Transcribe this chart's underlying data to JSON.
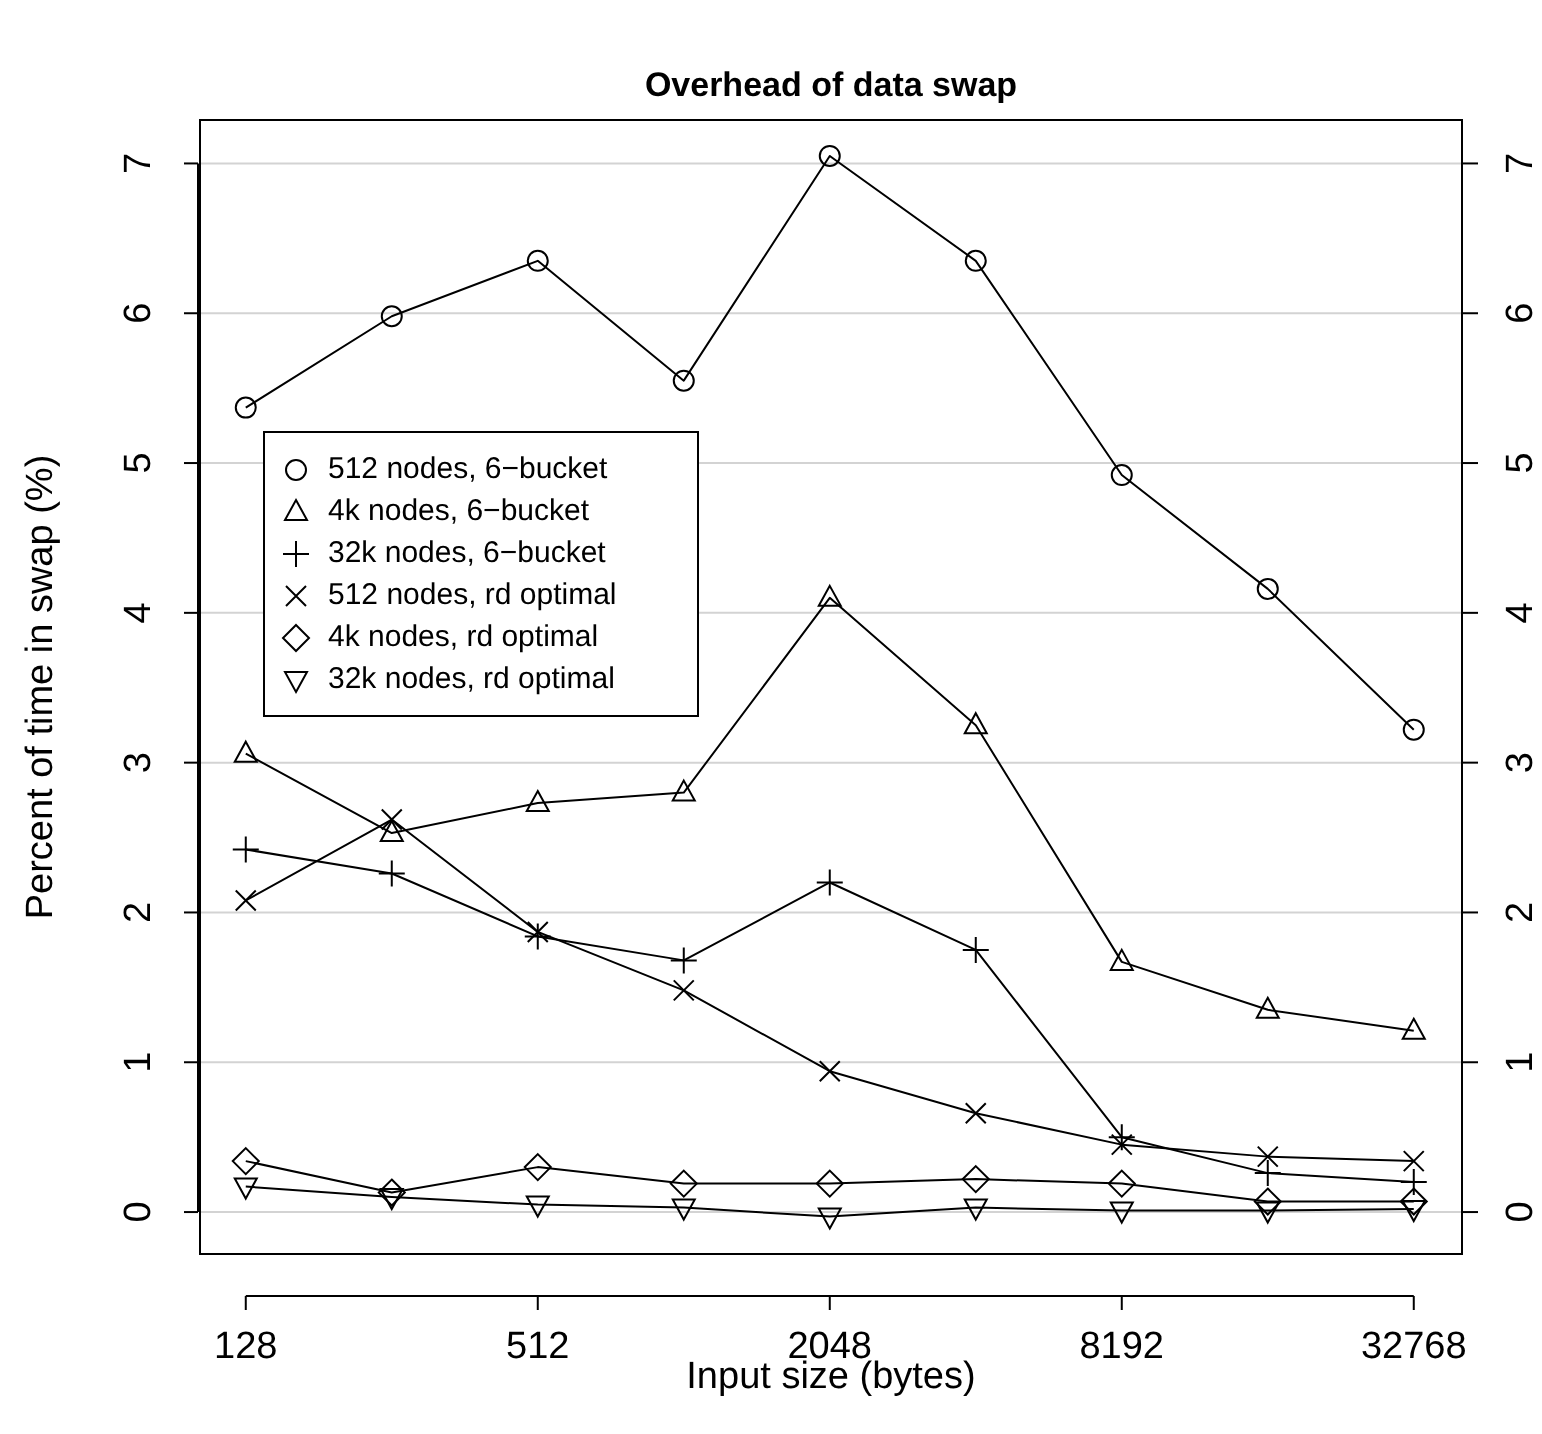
{
  "chart_data": {
    "type": "line",
    "title": "Overhead of data swap",
    "xlabel": "Input size (bytes)",
    "ylabel": "Percent of time in swap (%)",
    "x": [
      128,
      256,
      512,
      1024,
      2048,
      4096,
      8192,
      16384,
      32768
    ],
    "log": "x",
    "xlim": [
      103,
      41200
    ],
    "xticks": [
      128,
      512,
      2048,
      8192,
      32768
    ],
    "ylim": [
      -0.28,
      7.29
    ],
    "yticks": [
      0,
      1,
      2,
      3,
      4,
      5,
      6,
      7
    ],
    "y2lim": [
      -0.28,
      7.29
    ],
    "y2ticks": [
      0,
      1,
      2,
      3,
      4,
      5,
      6,
      7
    ],
    "grid": "y",
    "legend": "left",
    "line_style": "solid",
    "series": [
      {
        "name": "512 nodes, 6−bucket",
        "color": "#000000",
        "marker": "circle",
        "values": [
          5.37,
          5.98,
          6.35,
          5.55,
          7.05,
          6.35,
          4.92,
          4.16,
          3.22
        ]
      },
      {
        "name": "4k nodes, 6−bucket",
        "color": "#000000",
        "marker": "triangle",
        "values": [
          3.06,
          2.53,
          2.73,
          2.8,
          4.1,
          3.25,
          1.67,
          1.35,
          1.21
        ]
      },
      {
        "name": "32k nodes, 6−bucket",
        "color": "#000000",
        "marker": "cross",
        "values": [
          2.42,
          2.26,
          1.84,
          1.68,
          2.2,
          1.75,
          0.5,
          0.26,
          0.2
        ]
      },
      {
        "name": "512 nodes, rd optimal",
        "color": "#000000",
        "marker": "x",
        "values": [
          2.08,
          2.62,
          1.87,
          1.48,
          0.94,
          0.66,
          0.45,
          0.37,
          0.34
        ]
      },
      {
        "name": "4k nodes, rd optimal",
        "color": "#000000",
        "marker": "diamond",
        "values": [
          0.34,
          0.13,
          0.3,
          0.19,
          0.19,
          0.22,
          0.19,
          0.07,
          0.07
        ]
      },
      {
        "name": "32k nodes, rd optimal",
        "color": "#000000",
        "marker": "triangle-down",
        "values": [
          0.17,
          0.1,
          0.05,
          0.03,
          -0.03,
          0.03,
          0.01,
          0.01,
          0.02
        ]
      }
    ]
  }
}
